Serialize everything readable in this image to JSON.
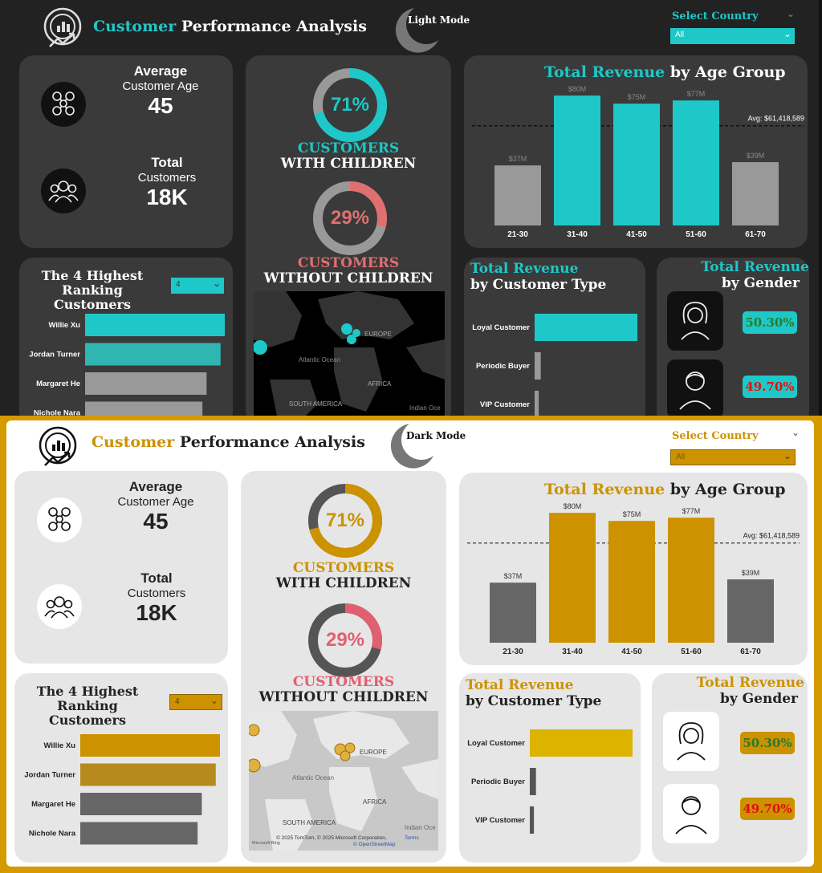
{
  "dashboard": {
    "title_accent": "Customer",
    "title_rest": "Performance Analysis",
    "country_filter": {
      "label": "Select Country",
      "value": "All"
    },
    "kpi": {
      "avg_label": "Average",
      "avg_sub": "Customer Age",
      "avg_value": "45",
      "total_label": "Total",
      "total_sub": "Customers",
      "total_value": "18K"
    },
    "children": {
      "with_pct": "71%",
      "with_line1": "CUSTOMERS",
      "with_line2": "WITH CHILDREN",
      "without_pct": "29%",
      "without_line1": "CUSTOMERS",
      "without_line2": "WITHOUT CHILDREN"
    },
    "ranking": {
      "title_line1": "The 4 Highest",
      "title_line2": "Ranking Customers",
      "topn": "4",
      "names": [
        "Willie Xu",
        "Jordan Turner",
        "Margaret He",
        "Nichole Nara"
      ]
    },
    "map": {
      "europe": "EUROPE",
      "atlantic": "Atlantic Ocean",
      "africa": "AFRICA",
      "south_america": "SOUTH AMERICA",
      "indian": "Indian Oce",
      "credit": "© 2025 TomTom, © 2025 Microsoft Corporation,",
      "terms": "Terms",
      "osm": "© OpenStreetMap",
      "bing": "Microsoft Bing"
    },
    "age_chart": {
      "title_accent": "Total Revenue",
      "title_rest": "by Age Group",
      "avg_label": "Avg: $61,418,589"
    },
    "type_chart": {
      "title_accent": "Total Revenue",
      "title_rest": "by Customer Type"
    },
    "gender": {
      "title_accent": "Total Revenue",
      "title_rest": "by Gender",
      "female_pct": "50.30%",
      "male_pct": "49.70%"
    }
  },
  "dark_theme": {
    "mode_button": "Light Mode",
    "accent": "#1ec8c8",
    "card": "#3a3a3a"
  },
  "light_theme": {
    "mode_button": "Dark Mode",
    "accent": "#cc9200",
    "card": "#e6e6e6"
  },
  "chart_data": [
    {
      "type": "bar",
      "title": "Total Revenue by Age Group",
      "categories": [
        "21-30",
        "31-40",
        "41-50",
        "51-60",
        "61-70"
      ],
      "values": [
        37,
        80,
        75,
        77,
        39
      ],
      "data_labels": [
        "$37M",
        "$80M",
        "$75M",
        "$77M",
        "$39M"
      ],
      "reference_line": {
        "label": "Avg: $61,418,589",
        "value": 61.418589
      },
      "ylim": [
        0,
        85
      ]
    },
    {
      "type": "bar",
      "title": "Total Revenue by Customer Type",
      "orientation": "horizontal",
      "categories": [
        "Loyal Customer",
        "Periodic Buyer",
        "VIP Customer"
      ],
      "values": [
        100,
        6,
        4
      ]
    },
    {
      "type": "bar",
      "title": "The 4 Highest Ranking Customers",
      "orientation": "horizontal",
      "categories": [
        "Willie Xu",
        "Jordan Turner",
        "Margaret He",
        "Nichole Nara"
      ],
      "values": [
        100,
        97,
        87,
        84
      ]
    },
    {
      "type": "pie",
      "title": "Customers with children",
      "labels": [
        "WITH CHILDREN",
        "WITHOUT CHILDREN"
      ],
      "values": [
        71,
        29
      ]
    },
    {
      "type": "pie",
      "title": "Total Revenue by Gender",
      "labels": [
        "Female",
        "Male"
      ],
      "values": [
        50.3,
        49.7
      ]
    }
  ]
}
